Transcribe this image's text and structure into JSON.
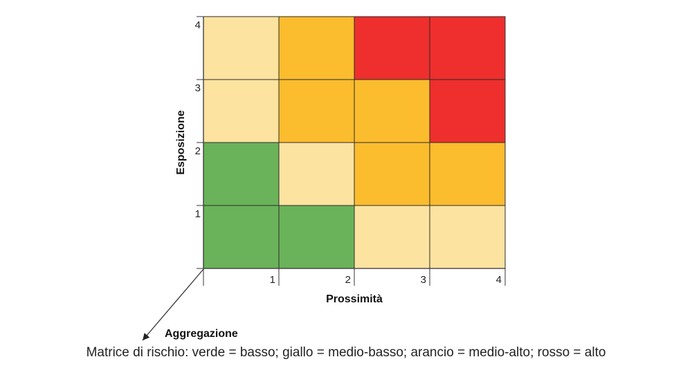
{
  "chart_data": {
    "type": "heatmap",
    "title": "",
    "xlabel": "Prossimità",
    "ylabel": "Esposizione",
    "zlabel": "Aggregazione",
    "x_categories": [
      "1",
      "2",
      "3",
      "4"
    ],
    "y_categories": [
      "1",
      "2",
      "3",
      "4"
    ],
    "levels": {
      "verde": "basso",
      "giallo": "medio-basso",
      "arancio": "medio-alto",
      "rosso": "alto"
    },
    "colors": {
      "verde": "#6ab35a",
      "giallo": "#fde3a0",
      "arancio": "#fbbc2e",
      "rosso": "#ee2f2d"
    },
    "grid": [
      {
        "y": "4",
        "cells": [
          "giallo",
          "arancio",
          "rosso",
          "rosso"
        ]
      },
      {
        "y": "3",
        "cells": [
          "giallo",
          "arancio",
          "arancio",
          "rosso"
        ]
      },
      {
        "y": "2",
        "cells": [
          "verde",
          "giallo",
          "arancio",
          "arancio"
        ]
      },
      {
        "y": "1",
        "cells": [
          "verde",
          "verde",
          "giallo",
          "giallo"
        ]
      }
    ]
  },
  "caption": "Matrice di rischio: verde = basso; giallo = medio-basso; arancio = medio-alto; rosso = alto"
}
